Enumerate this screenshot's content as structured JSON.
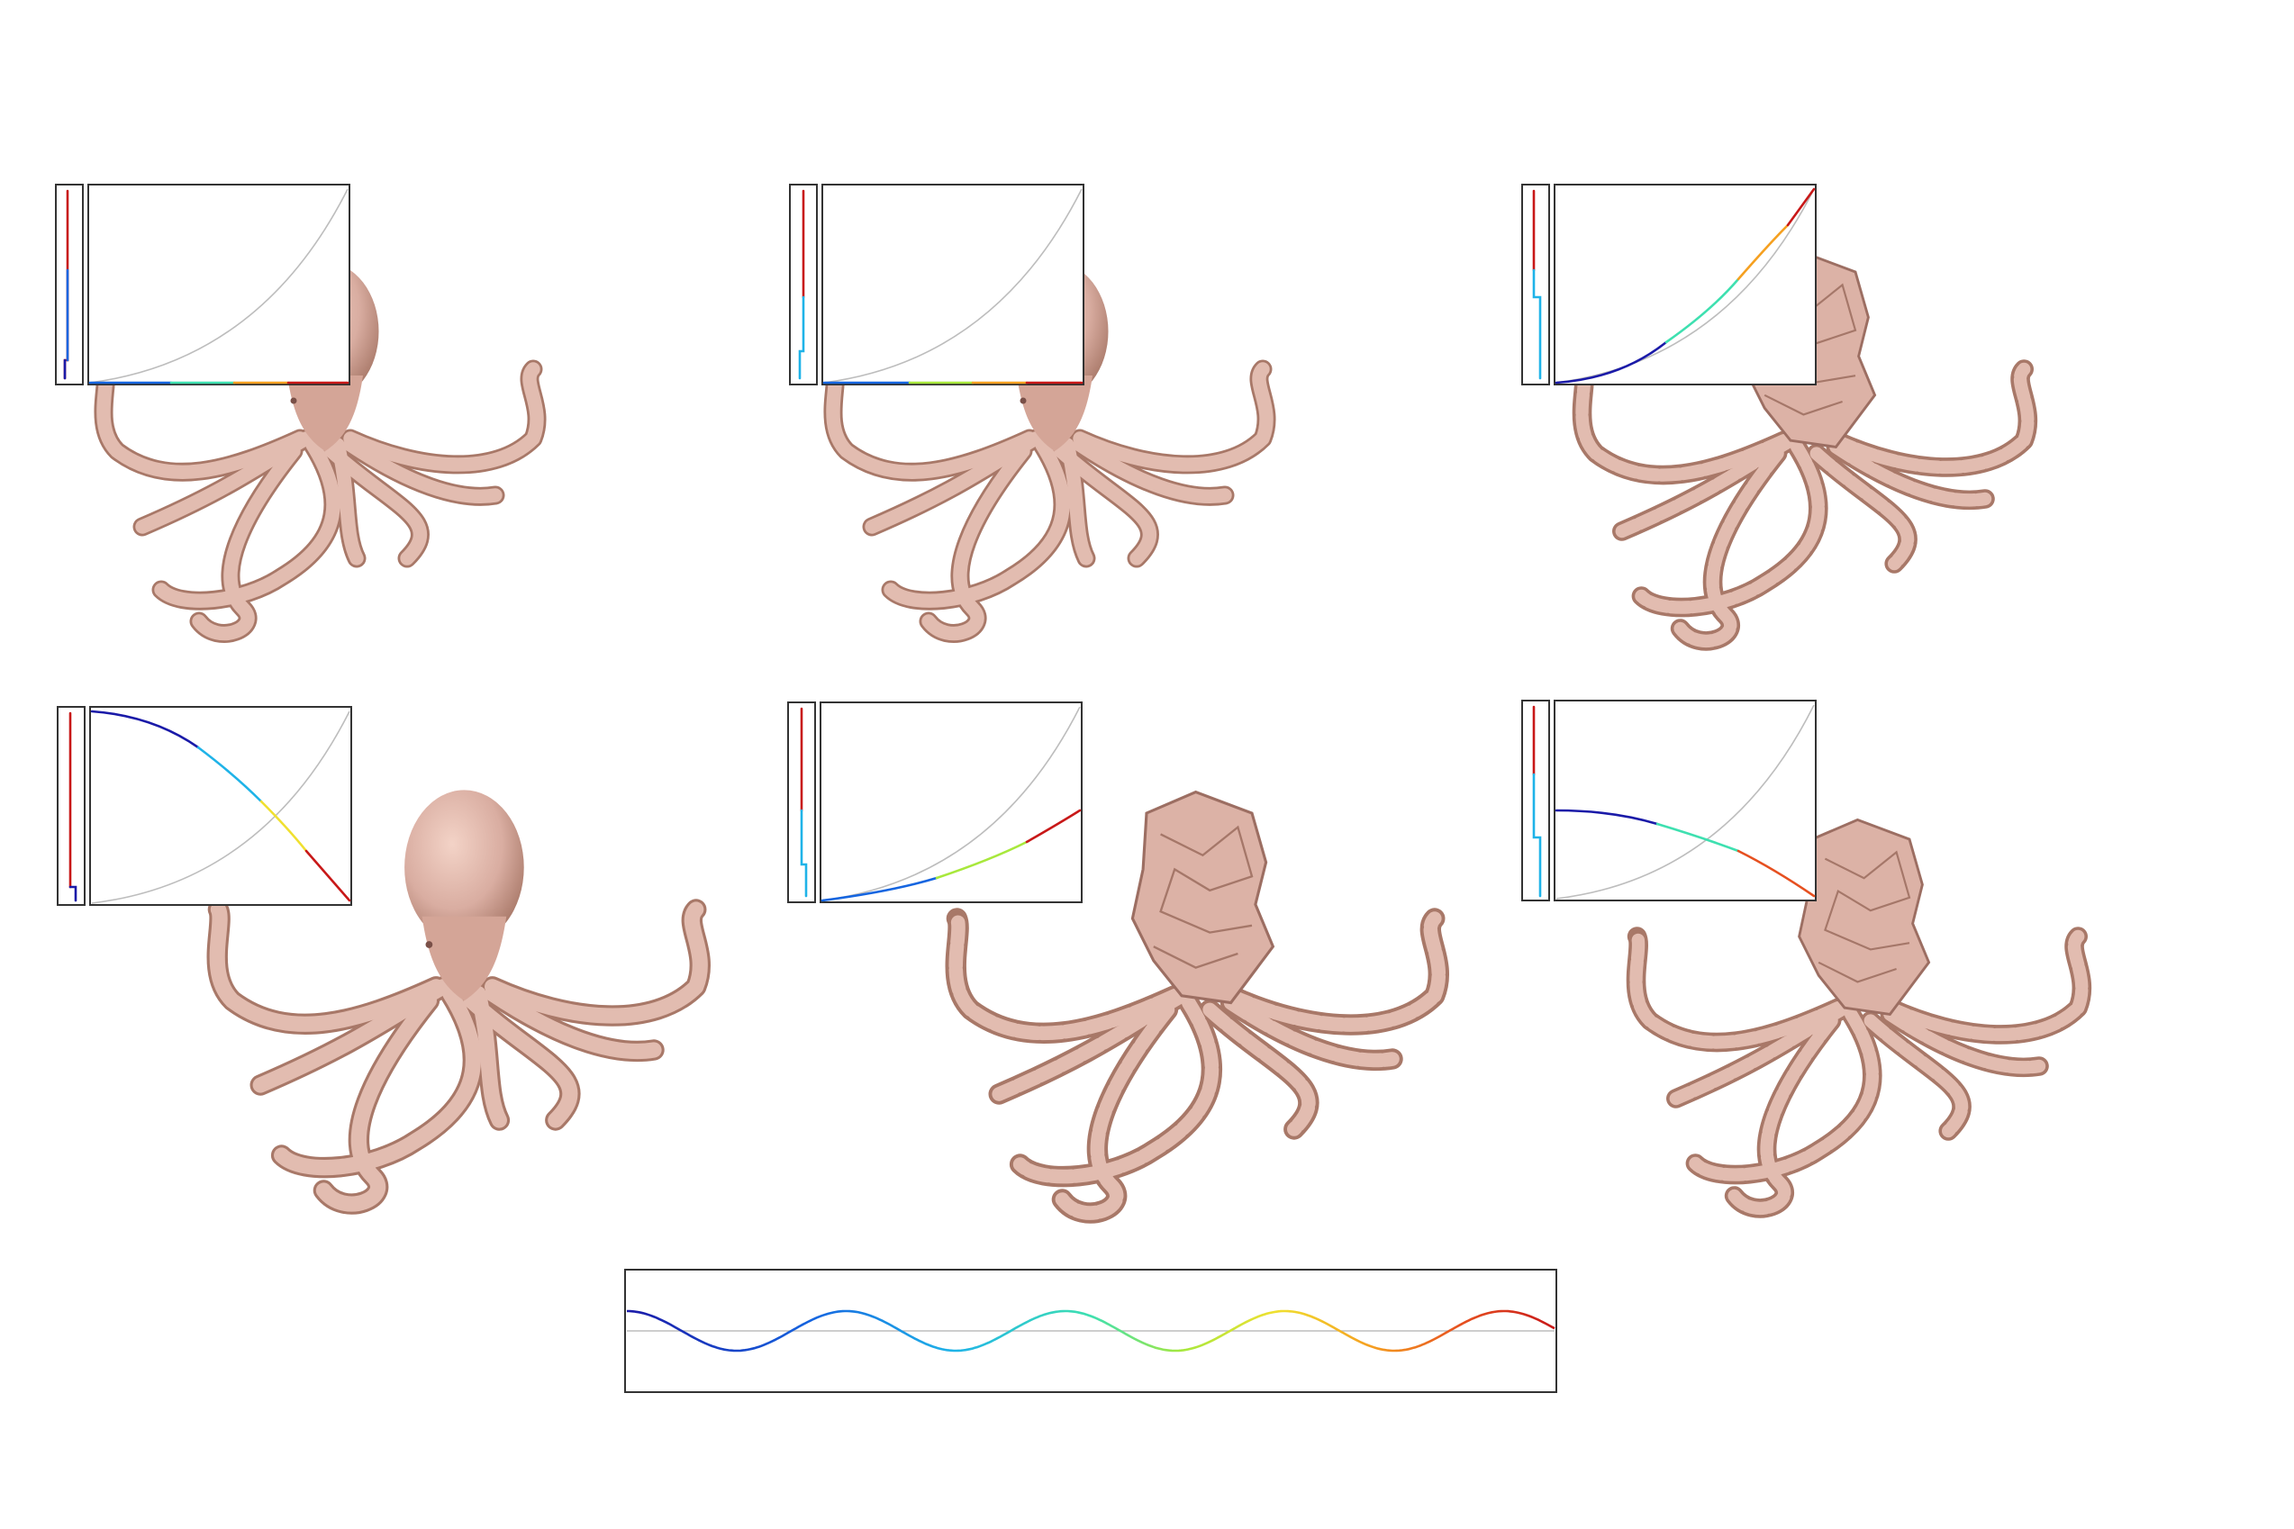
{
  "figure": {
    "palette": [
      "#1a1aa8",
      "#1565e0",
      "#1fb3e8",
      "#3ee0b0",
      "#a8e83c",
      "#f0e030",
      "#f5a020",
      "#e65020",
      "#c81818"
    ],
    "octopus_color": "#d9ada1",
    "octopus_shade": "#a87868",
    "panels": [
      {
        "id": "top-left",
        "curve": "flat-then-jump",
        "mesh": "smooth"
      },
      {
        "id": "top-middle",
        "curve": "flat-then-jump",
        "mesh": "smooth"
      },
      {
        "id": "top-right",
        "curve": "convex-rising",
        "mesh": "crumpled"
      },
      {
        "id": "bottom-left",
        "curve": "concave-falling",
        "mesh": "smooth"
      },
      {
        "id": "bottom-middle",
        "curve": "slow-rising",
        "mesh": "distorted"
      },
      {
        "id": "bottom-right",
        "curve": "gentle-falling",
        "mesh": "crumpled"
      }
    ],
    "reference_signal": {
      "type": "sine",
      "cycles": 4
    }
  }
}
